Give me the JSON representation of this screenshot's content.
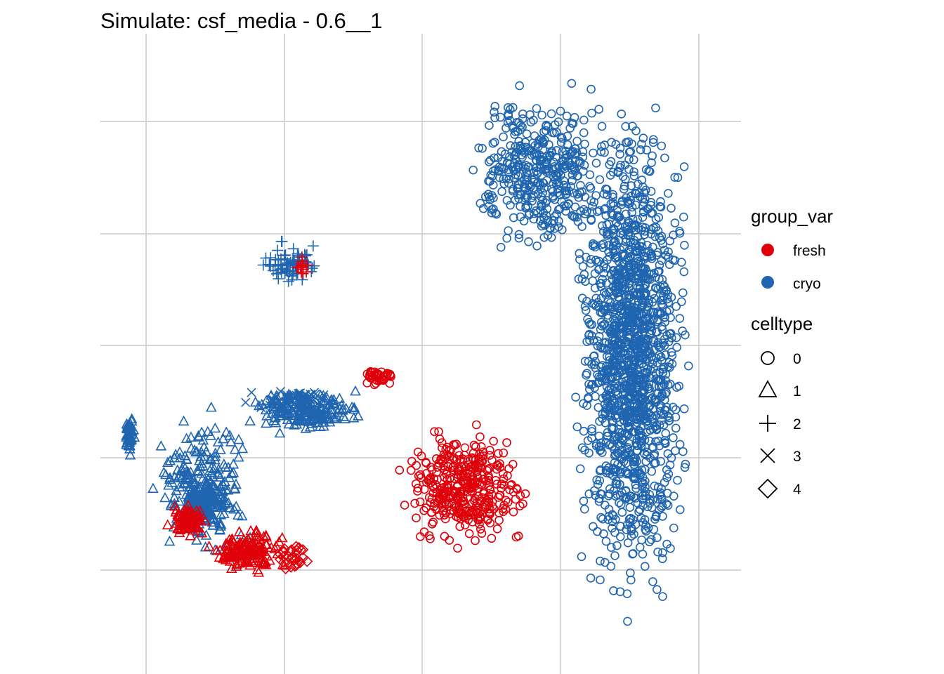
{
  "chart_data": {
    "type": "scatter",
    "title": "Simulate: csf_media - 0.6__1",
    "xlabel": "",
    "ylabel": "",
    "grid": true,
    "axis_ticks_labels_shown": false,
    "legend_position": "right",
    "colors": {
      "fresh": "#e0000a",
      "cryo": "#1f65b0"
    },
    "legend": {
      "group_var": {
        "title": "group_var",
        "entries": [
          "fresh",
          "cryo"
        ]
      },
      "celltype": {
        "title": "celltype",
        "entries": [
          {
            "label": "0",
            "shape": "circle"
          },
          {
            "label": "1",
            "shape": "triangle"
          },
          {
            "label": "2",
            "shape": "plus"
          },
          {
            "label": "3",
            "shape": "cross"
          },
          {
            "label": "4",
            "shape": "diamond"
          }
        ]
      }
    },
    "clusters": [
      {
        "group": "cryo",
        "celltype": "0",
        "n": 1500,
        "x": [
          2.1,
          3.5
        ],
        "y": [
          -4.4,
          4.9
        ]
      },
      {
        "group": "cryo",
        "celltype": "0",
        "n": 400,
        "x": [
          0.9,
          2.7
        ],
        "y": [
          1.6,
          4.9
        ]
      },
      {
        "group": "cryo",
        "celltype": "1",
        "n": 220,
        "x": [
          -2.5,
          -1.3
        ],
        "y": [
          -3.3,
          -0.5
        ]
      },
      {
        "group": "cryo",
        "celltype": "1",
        "n": 180,
        "x": [
          -1.5,
          0.0
        ],
        "y": [
          -1.1,
          -0.3
        ]
      },
      {
        "group": "cryo",
        "celltype": "1",
        "n": 120,
        "x": [
          -2.1,
          -1.6
        ],
        "y": [
          -2.7,
          -1.8
        ]
      },
      {
        "group": "cryo",
        "celltype": "1",
        "n": 80,
        "x": [
          -2.8,
          -2.6
        ],
        "y": [
          -1.5,
          -0.7
        ]
      },
      {
        "group": "cryo",
        "celltype": "2",
        "n": 70,
        "x": [
          -1.3,
          -0.5
        ],
        "y": [
          1.3,
          2.1
        ]
      },
      {
        "group": "cryo",
        "celltype": "3",
        "n": 60,
        "x": [
          -1.5,
          -0.3
        ],
        "y": [
          -0.7,
          -0.3
        ]
      },
      {
        "group": "fresh",
        "celltype": "0",
        "n": 380,
        "x": [
          0.2,
          1.8
        ],
        "y": [
          -3.1,
          -0.8
        ]
      },
      {
        "group": "fresh",
        "celltype": "0",
        "n": 40,
        "x": [
          -0.2,
          0.3
        ],
        "y": [
          -0.3,
          0.0
        ]
      },
      {
        "group": "fresh",
        "celltype": "1",
        "n": 150,
        "x": [
          -1.9,
          -0.9
        ],
        "y": [
          -3.4,
          -2.6
        ]
      },
      {
        "group": "fresh",
        "celltype": "1",
        "n": 90,
        "x": [
          -2.3,
          -1.8
        ],
        "y": [
          -2.8,
          -2.2
        ]
      },
      {
        "group": "fresh",
        "celltype": "2",
        "n": 15,
        "x": [
          -0.9,
          -0.7
        ],
        "y": [
          1.4,
          1.9
        ]
      },
      {
        "group": "fresh",
        "celltype": "4",
        "n": 30,
        "x": [
          -1.1,
          -0.7
        ],
        "y": [
          -3.4,
          -2.8
        ]
      }
    ],
    "xlim": [
      -3.0,
      4.0
    ],
    "ylim": [
      -5.0,
      5.5
    ]
  }
}
